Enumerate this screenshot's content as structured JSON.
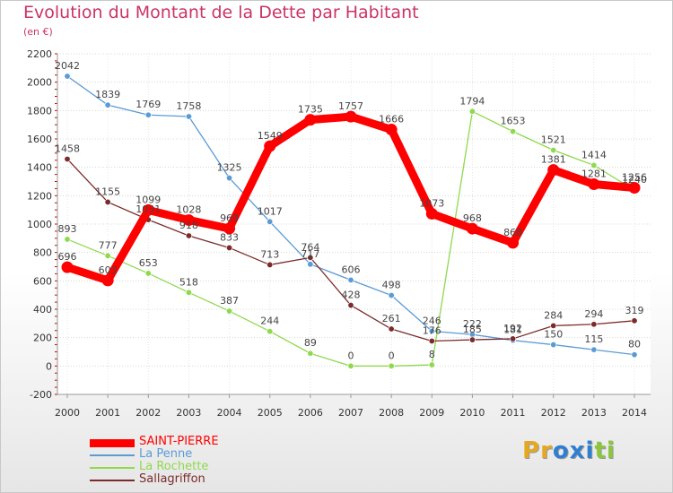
{
  "chart_data": {
    "type": "line",
    "title": "Evolution du Montant de la Dette par Habitant",
    "subtitle": "(en €)",
    "xlabel": "",
    "ylabel": "",
    "ylim": [
      -200,
      2200
    ],
    "yticks": [
      -200,
      0,
      200,
      400,
      600,
      800,
      1000,
      1200,
      1400,
      1600,
      1800,
      2000,
      2200
    ],
    "categories": [
      "2000",
      "2001",
      "2002",
      "2003",
      "2004",
      "2005",
      "2006",
      "2007",
      "2008",
      "2009",
      "2010",
      "2011",
      "2012",
      "2013",
      "2014"
    ],
    "series": [
      {
        "name": "SAINT-PIERRE",
        "color": "#ff0000",
        "values": [
          696,
          603,
          1099,
          1028,
          969,
          1549,
          1735,
          1757,
          1666,
          1073,
          968,
          868,
          1381,
          1281,
          1256
        ]
      },
      {
        "name": "La Penne",
        "color": "#5b9bd5",
        "values": [
          2042,
          1839,
          1769,
          1758,
          1325,
          1017,
          717,
          606,
          498,
          246,
          222,
          181,
          150,
          115,
          80
        ]
      },
      {
        "name": "La Rochette",
        "color": "#8fd94f",
        "values": [
          893,
          777,
          653,
          518,
          387,
          244,
          89,
          0,
          0,
          8,
          1794,
          1653,
          1521,
          1414,
          1240
        ]
      },
      {
        "name": "Sallagriffon",
        "color": "#7b2b2b",
        "values": [
          1458,
          1155,
          1031,
          918,
          833,
          713,
          764,
          428,
          261,
          176,
          185,
          192,
          284,
          294,
          319
        ]
      }
    ],
    "legend_position": "bottom-left"
  },
  "logo": {
    "letters": [
      "P",
      "r",
      "o",
      "x",
      "i",
      "t",
      "i"
    ],
    "colors": [
      "#e5a823",
      "#e5a823",
      "#2f7fd0",
      "#2f7fd0",
      "#2f7fd0",
      "#8cc63f",
      "#8cc63f"
    ]
  }
}
